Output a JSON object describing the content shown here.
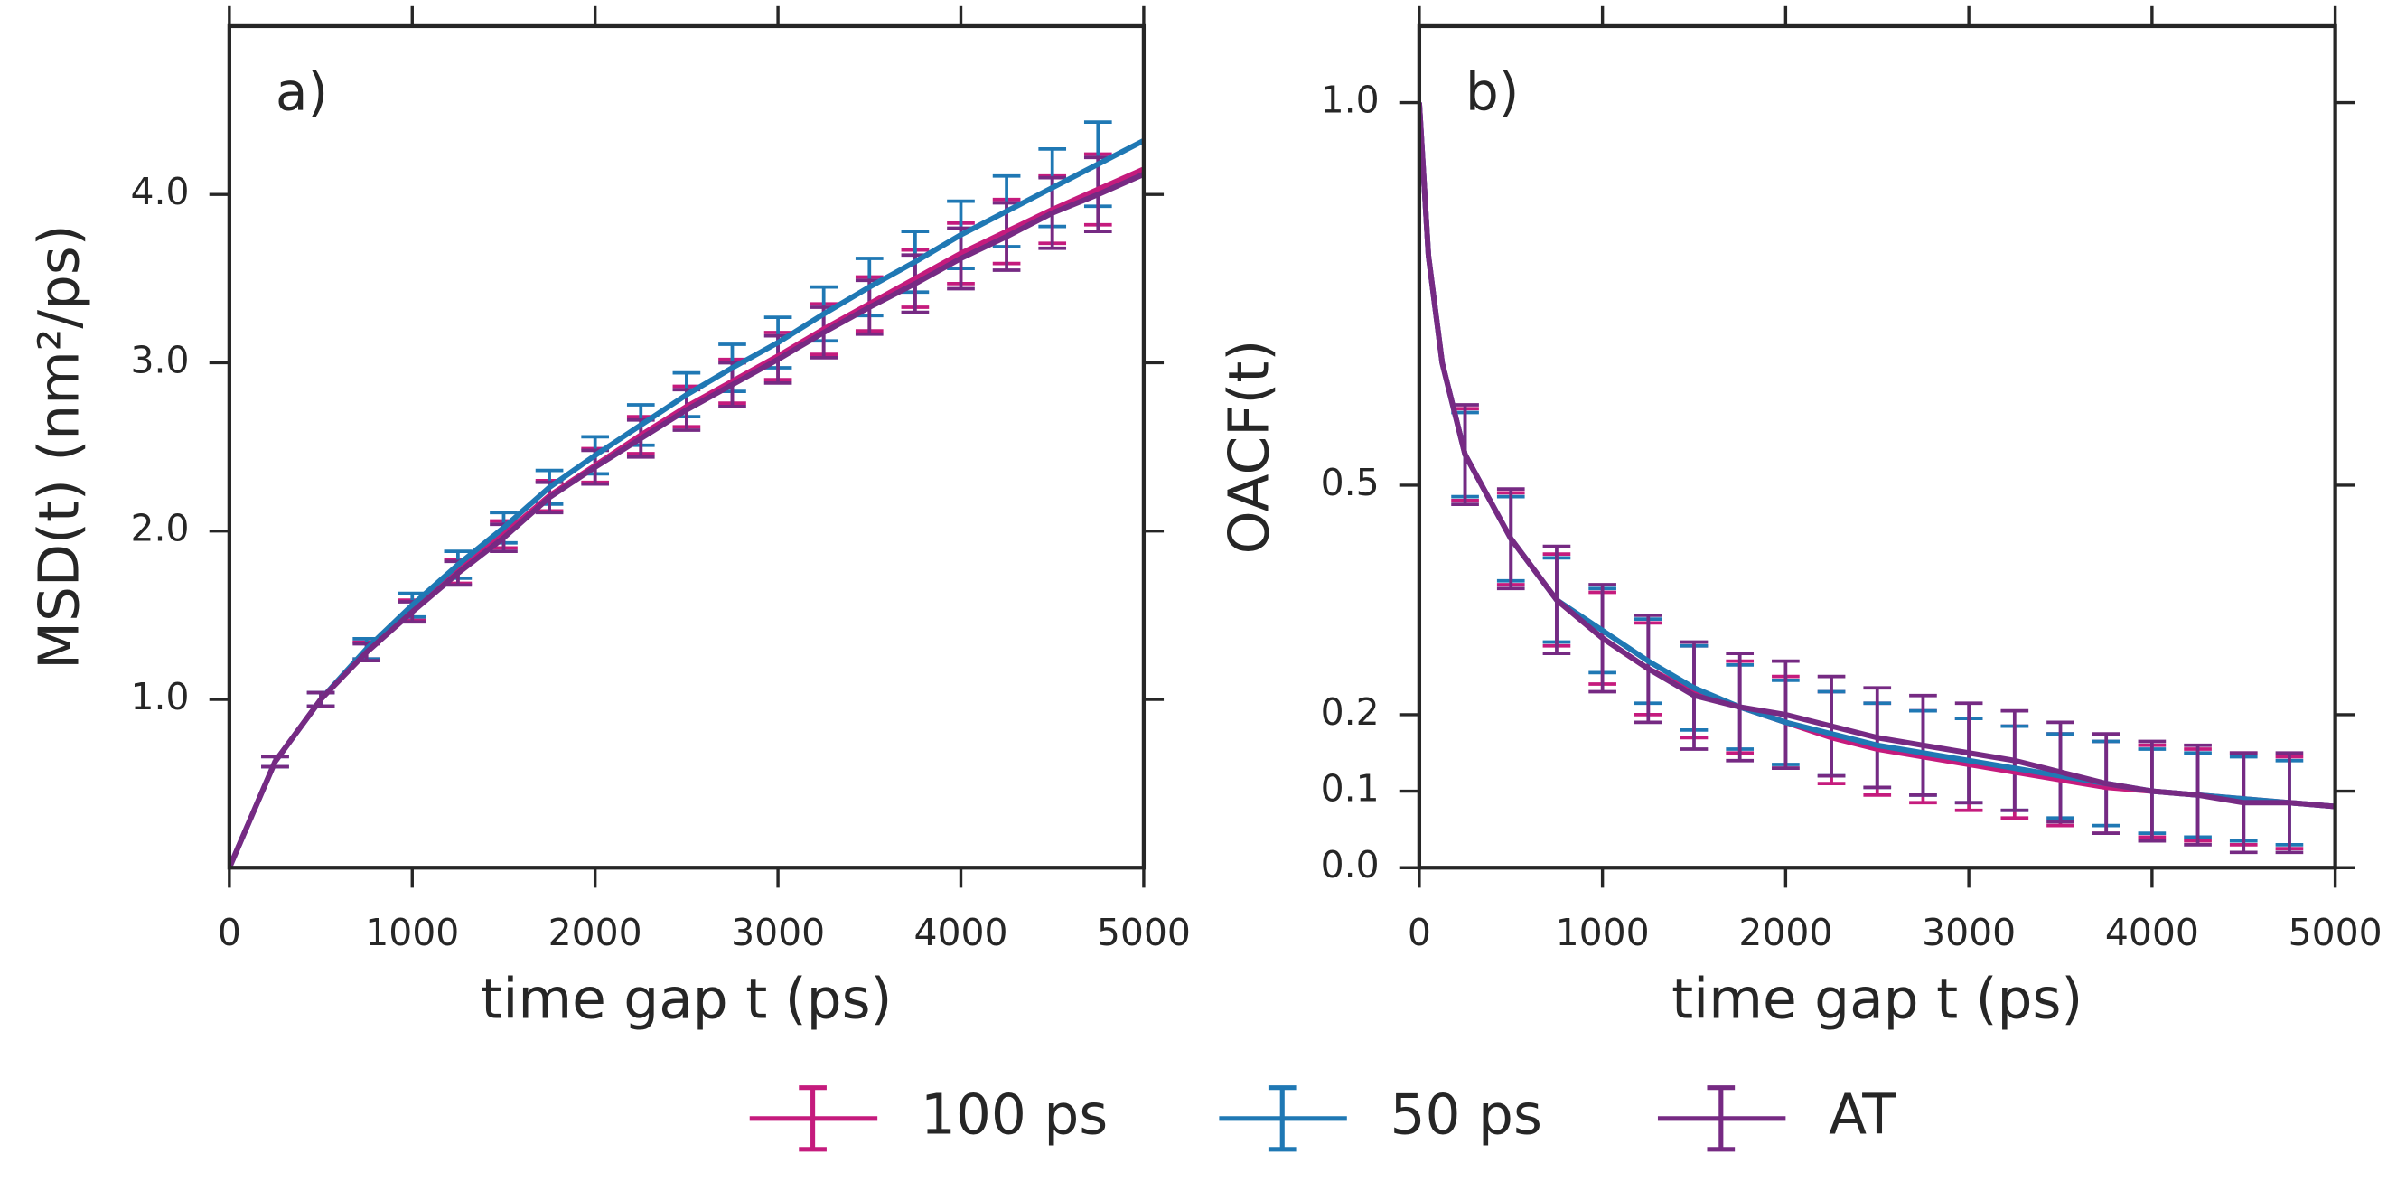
{
  "chart_data": [
    {
      "type": "errorbar-line",
      "title": "a)",
      "xlabel": "time gap t (ps)",
      "ylabel": "MSD(t) (nm²/ps)",
      "x": [
        0,
        250,
        500,
        750,
        1000,
        1250,
        1500,
        1750,
        2000,
        2250,
        2500,
        2750,
        3000,
        3250,
        3500,
        3750,
        4000,
        4250,
        4500,
        4750,
        5000
      ],
      "series": [
        {
          "name": "100 ps",
          "color": "#c51b7d",
          "values": [
            0,
            0.63,
            1.0,
            1.29,
            1.53,
            1.76,
            1.98,
            2.21,
            2.39,
            2.57,
            2.74,
            2.89,
            3.04,
            3.2,
            3.35,
            3.5,
            3.65,
            3.78,
            3.91,
            4.03,
            4.15
          ],
          "errors": [
            null,
            0.03,
            0.04,
            0.05,
            0.06,
            0.07,
            0.08,
            0.09,
            0.1,
            0.11,
            0.12,
            0.13,
            0.14,
            0.15,
            0.16,
            0.17,
            0.18,
            0.19,
            0.2,
            0.21,
            null
          ]
        },
        {
          "name": "50 ps",
          "color": "#1f78b4",
          "values": [
            0,
            0.63,
            1.0,
            1.3,
            1.56,
            1.8,
            2.02,
            2.26,
            2.45,
            2.63,
            2.81,
            2.97,
            3.12,
            3.29,
            3.45,
            3.6,
            3.76,
            3.9,
            4.04,
            4.18,
            4.32
          ],
          "errors": [
            null,
            0.03,
            0.04,
            0.06,
            0.07,
            0.08,
            0.09,
            0.1,
            0.11,
            0.12,
            0.13,
            0.14,
            0.15,
            0.16,
            0.17,
            0.18,
            0.2,
            0.21,
            0.23,
            0.25,
            null
          ]
        },
        {
          "name": "AT",
          "color": "#762a83",
          "values": [
            0,
            0.63,
            1.0,
            1.28,
            1.52,
            1.75,
            1.96,
            2.2,
            2.38,
            2.55,
            2.72,
            2.87,
            3.02,
            3.18,
            3.33,
            3.47,
            3.62,
            3.75,
            3.89,
            4.0,
            4.12
          ],
          "errors": [
            null,
            0.03,
            0.04,
            0.05,
            0.06,
            0.07,
            0.08,
            0.09,
            0.1,
            0.11,
            0.12,
            0.13,
            0.14,
            0.15,
            0.16,
            0.17,
            0.18,
            0.2,
            0.21,
            0.22,
            null
          ]
        }
      ],
      "xlim": [
        0,
        5000
      ],
      "xticks": [
        0,
        1000,
        2000,
        3000,
        4000,
        5000
      ],
      "ylim": [
        0,
        5
      ],
      "yticks": [
        {
          "value": 1,
          "label": "1.0"
        },
        {
          "value": 2,
          "label": "2.0"
        },
        {
          "value": 3,
          "label": "3.0"
        },
        {
          "value": 4,
          "label": "4.0"
        }
      ]
    },
    {
      "type": "errorbar-line",
      "title": "b)",
      "xlabel": "time gap t (ps)",
      "ylabel": "OACF(t)",
      "x": [
        0,
        50,
        125,
        250,
        500,
        750,
        1000,
        1250,
        1500,
        1750,
        2000,
        2250,
        2500,
        2750,
        3000,
        3250,
        3500,
        3750,
        4000,
        4250,
        4500,
        4750,
        5000
      ],
      "series": [
        {
          "color": "#c51b7d",
          "values": [
            1.0,
            0.8,
            0.66,
            0.54,
            0.43,
            0.35,
            0.3,
            0.26,
            0.23,
            0.21,
            0.19,
            0.17,
            0.155,
            0.145,
            0.135,
            0.125,
            0.115,
            0.105,
            0.1,
            0.095,
            0.09,
            0.085,
            0.08
          ],
          "errors": [
            null,
            null,
            null,
            0.06,
            0.06,
            0.06,
            0.06,
            0.06,
            0.06,
            0.06,
            0.06,
            0.06,
            0.06,
            0.06,
            0.06,
            0.06,
            0.06,
            0.06,
            0.06,
            0.06,
            0.06,
            0.06,
            null
          ]
        },
        {
          "color": "#1f78b4",
          "values": [
            1.0,
            0.8,
            0.66,
            0.54,
            0.43,
            0.35,
            0.31,
            0.27,
            0.235,
            0.21,
            0.19,
            0.175,
            0.16,
            0.15,
            0.14,
            0.13,
            0.12,
            0.11,
            0.1,
            0.095,
            0.09,
            0.085,
            0.08
          ],
          "errors": [
            null,
            null,
            null,
            0.055,
            0.055,
            0.055,
            0.055,
            0.055,
            0.055,
            0.055,
            0.055,
            0.055,
            0.055,
            0.055,
            0.055,
            0.055,
            0.055,
            0.055,
            0.055,
            0.055,
            0.055,
            0.055,
            null
          ]
        },
        {
          "color": "#762a83",
          "values": [
            1.0,
            0.8,
            0.66,
            0.54,
            0.43,
            0.35,
            0.3,
            0.26,
            0.225,
            0.21,
            0.2,
            0.185,
            0.17,
            0.16,
            0.15,
            0.14,
            0.125,
            0.11,
            0.1,
            0.095,
            0.085,
            0.085,
            0.08
          ],
          "errors": [
            null,
            null,
            null,
            0.065,
            0.065,
            0.07,
            0.07,
            0.07,
            0.07,
            0.07,
            0.07,
            0.065,
            0.065,
            0.065,
            0.065,
            0.065,
            0.065,
            0.065,
            0.065,
            0.065,
            0.065,
            0.065,
            null
          ]
        }
      ],
      "xlim": [
        0,
        5000
      ],
      "xticks": [
        0,
        1000,
        2000,
        3000,
        4000,
        5000
      ],
      "ylim": [
        0,
        1.1
      ],
      "yticks": [
        {
          "value": 0,
          "label": "0.0"
        },
        {
          "value": 0.1,
          "label": "0.1"
        },
        {
          "value": 0.2,
          "label": "0.2"
        },
        {
          "value": 0.5,
          "label": "0.5"
        },
        {
          "value": 1,
          "label": "1.0"
        }
      ]
    }
  ]
}
